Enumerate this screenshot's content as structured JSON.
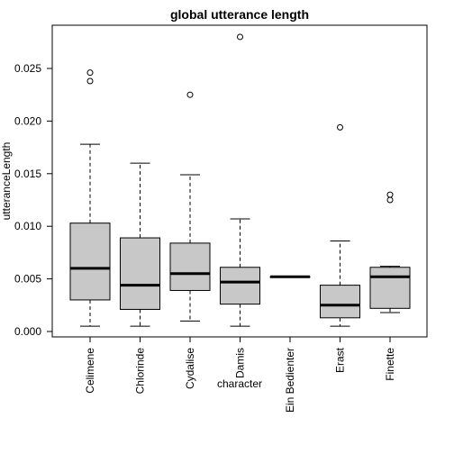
{
  "chart_data": {
    "type": "boxplot",
    "title": "global utterance length",
    "xlabel": "character",
    "ylabel": "utteranceLength",
    "ylim": [
      0,
      0.028
    ],
    "yticks": [
      "0.000",
      "0.005",
      "0.010",
      "0.015",
      "0.020",
      "0.025"
    ],
    "ytick_values": [
      0,
      0.005,
      0.01,
      0.015,
      0.02,
      0.025
    ],
    "categories": [
      "Celimene",
      "Chlorinde",
      "Cydalise",
      "Damis",
      "Ein Bedienter",
      "Erast",
      "Finette"
    ],
    "boxes": [
      {
        "category": "Celimene",
        "whisker_low": 0.0005,
        "q1": 0.003,
        "median": 0.006,
        "q3": 0.0103,
        "whisker_high": 0.0178,
        "outliers": [
          0.0246,
          0.0238
        ]
      },
      {
        "category": "Chlorinde",
        "whisker_low": 0.0005,
        "q1": 0.0021,
        "median": 0.0044,
        "q3": 0.0089,
        "whisker_high": 0.016,
        "outliers": []
      },
      {
        "category": "Cydalise",
        "whisker_low": 0.001,
        "q1": 0.0039,
        "median": 0.0055,
        "q3": 0.0084,
        "whisker_high": 0.0149,
        "outliers": [
          0.0225
        ]
      },
      {
        "category": "Damis",
        "whisker_low": 0.0005,
        "q1": 0.0026,
        "median": 0.0047,
        "q3": 0.0061,
        "whisker_high": 0.0107,
        "outliers": [
          0.028
        ]
      },
      {
        "category": "Ein Bedienter",
        "whisker_low": 0.0052,
        "q1": 0.0052,
        "median": 0.0052,
        "q3": 0.0052,
        "whisker_high": 0.0052,
        "outliers": []
      },
      {
        "category": "Erast",
        "whisker_low": 0.0005,
        "q1": 0.0013,
        "median": 0.0025,
        "q3": 0.0044,
        "whisker_high": 0.0086,
        "outliers": [
          0.0194
        ]
      },
      {
        "category": "Finette",
        "whisker_low": 0.0018,
        "q1": 0.0022,
        "median": 0.0052,
        "q3": 0.0061,
        "whisker_high": 0.0062,
        "outliers": [
          0.013,
          0.0125
        ]
      }
    ],
    "colors": {
      "box_fill": "#c8c8c8",
      "stroke": "#000000"
    },
    "grid": false,
    "legend": "none"
  }
}
